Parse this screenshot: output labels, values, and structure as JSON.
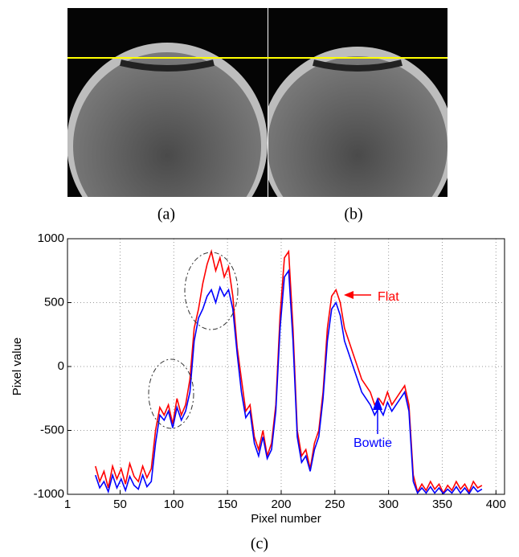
{
  "captions": [
    "(a)",
    "(b)"
  ],
  "chart_data": {
    "type": "line",
    "caption": "(c)",
    "xlabel": "Pixel number",
    "ylabel": "Pixel value",
    "xlim": [
      1,
      408
    ],
    "ylim": [
      -1000,
      1000
    ],
    "xticks": [
      1,
      50,
      100,
      150,
      200,
      250,
      300,
      350,
      400
    ],
    "yticks": [
      -1000,
      -500,
      0,
      500,
      1000
    ],
    "grid": true,
    "x": [
      27,
      31,
      35,
      39,
      43,
      47,
      51,
      55,
      59,
      63,
      67,
      71,
      75,
      79,
      83,
      87,
      91,
      95,
      99,
      103,
      107,
      111,
      115,
      119,
      123,
      127,
      131,
      135,
      139,
      143,
      147,
      151,
      155,
      159,
      163,
      167,
      171,
      175,
      179,
      183,
      187,
      191,
      195,
      199,
      203,
      207,
      211,
      215,
      219,
      223,
      227,
      231,
      235,
      239,
      243,
      247,
      251,
      255,
      259,
      263,
      267,
      271,
      275,
      279,
      283,
      287,
      291,
      295,
      299,
      303,
      307,
      311,
      315,
      319,
      323,
      327,
      331,
      335,
      339,
      343,
      347,
      351,
      355,
      359,
      363,
      367,
      371,
      375,
      379,
      383,
      387
    ],
    "series": [
      {
        "name": "Flat",
        "color": "#ff0000",
        "values": [
          -780,
          -900,
          -820,
          -950,
          -780,
          -880,
          -800,
          -920,
          -760,
          -860,
          -900,
          -780,
          -870,
          -800,
          -500,
          -320,
          -380,
          -300,
          -450,
          -250,
          -380,
          -300,
          -100,
          300,
          450,
          650,
          800,
          900,
          750,
          850,
          700,
          780,
          550,
          150,
          -100,
          -350,
          -300,
          -550,
          -650,
          -500,
          -700,
          -600,
          -300,
          400,
          850,
          900,
          300,
          -500,
          -700,
          -650,
          -800,
          -600,
          -500,
          -200,
          300,
          550,
          600,
          500,
          300,
          200,
          100,
          0,
          -100,
          -150,
          -200,
          -300,
          -250,
          -300,
          -200,
          -300,
          -250,
          -200,
          -150,
          -300,
          -850,
          -980,
          -920,
          -970,
          -900,
          -960,
          -920,
          -990,
          -930,
          -970,
          -900,
          -960,
          -920,
          -980,
          -900,
          -950,
          -930
        ]
      },
      {
        "name": "Bowtie",
        "color": "#0000ff",
        "values": [
          -850,
          -950,
          -900,
          -980,
          -850,
          -950,
          -880,
          -970,
          -860,
          -930,
          -960,
          -850,
          -940,
          -900,
          -600,
          -380,
          -420,
          -350,
          -480,
          -320,
          -420,
          -350,
          -200,
          200,
          380,
          450,
          550,
          600,
          500,
          620,
          550,
          600,
          450,
          100,
          -200,
          -400,
          -350,
          -600,
          -700,
          -550,
          -720,
          -650,
          -350,
          300,
          700,
          750,
          200,
          -550,
          -750,
          -700,
          -820,
          -650,
          -550,
          -250,
          200,
          450,
          500,
          400,
          200,
          100,
          0,
          -100,
          -200,
          -250,
          -300,
          -380,
          -320,
          -380,
          -280,
          -350,
          -300,
          -250,
          -200,
          -350,
          -900,
          -990,
          -950,
          -990,
          -940,
          -990,
          -950,
          -995,
          -960,
          -990,
          -940,
          -990,
          -950,
          -995,
          -940,
          -980,
          -960
        ]
      }
    ]
  }
}
